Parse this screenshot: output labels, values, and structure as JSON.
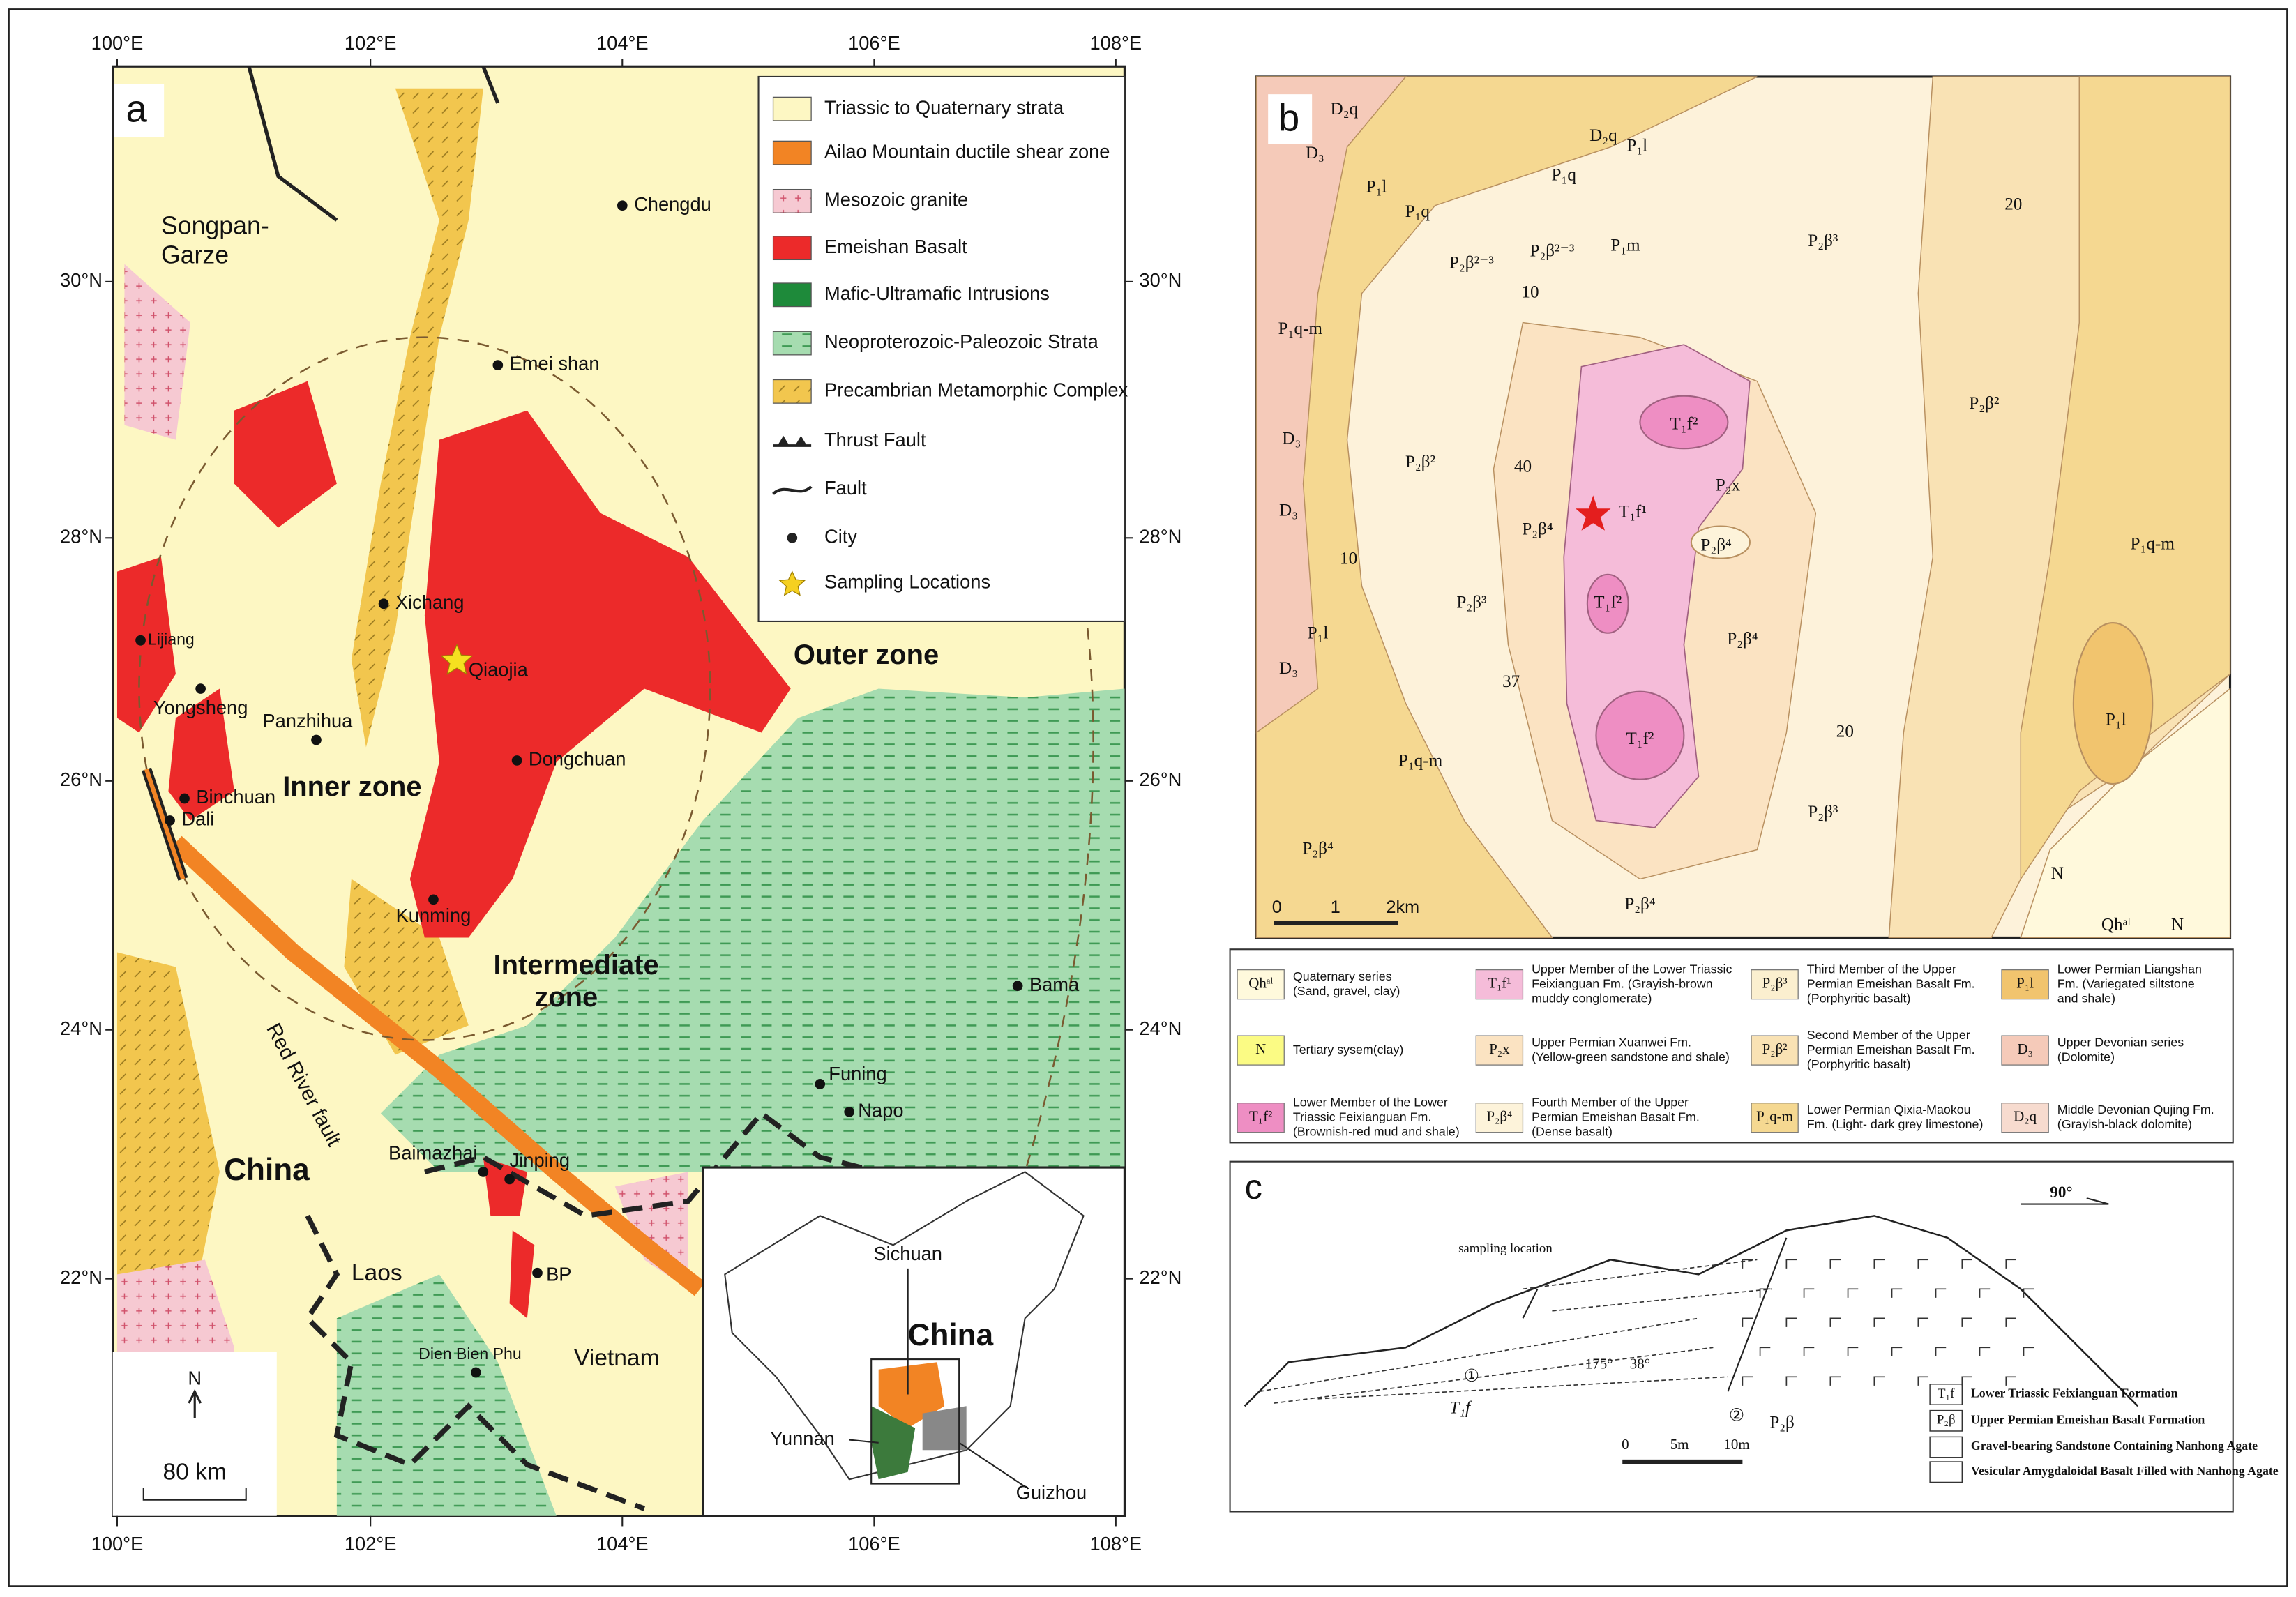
{
  "panel_a": {
    "label": "a",
    "lon_ticks": [
      "100°E",
      "102°E",
      "104°E",
      "106°E",
      "108°E"
    ],
    "lat_ticks": [
      "30°N",
      "28°N",
      "26°N",
      "24°N",
      "22°N"
    ],
    "legend": [
      {
        "text": "Triassic to Quaternary strata",
        "color": "#fdf7c3"
      },
      {
        "text": "Ailao Mountain ductile shear zone",
        "color": "#f28424"
      },
      {
        "text": "Mesozoic granite",
        "color": "#f6c9d2"
      },
      {
        "text": "Emeishan Basalt",
        "color": "#ec2a2a"
      },
      {
        "text": "Mafic-Ultramafic Intrusions",
        "color": "#1e8a3a"
      },
      {
        "text": "Neoproterozoic-Paleozoic Strata",
        "color": "#a6dcb0"
      },
      {
        "text": "Precambrian Metamorphic Complex",
        "color": "#f2c64e"
      },
      {
        "text": "Thrust Fault"
      },
      {
        "text": "Fault"
      },
      {
        "text": "City"
      },
      {
        "text": "Sampling Locations",
        "color": "#f5d020"
      }
    ],
    "regions": [
      "Songpan-",
      "Garze"
    ],
    "places": [
      "Chengdu",
      "Emei shan",
      "Xichang",
      "Qiaojia",
      "Lijiang",
      "Yongsheng",
      "Panzhihua",
      "Dongchuan",
      "Binchuan",
      "Dali",
      "Kunming",
      "Bama",
      "Funing",
      "Napo",
      "Baimazhai",
      "Jinping",
      "BP",
      "Dien Bien Phu"
    ],
    "zones": {
      "inner": "Inner zone",
      "intermediate": [
        "Intermediate",
        "zone"
      ],
      "outer": "Outer zone"
    },
    "fault_label": "Red River fault",
    "countries": [
      "China",
      "Laos",
      "Vietnam"
    ],
    "inset": {
      "country": "China",
      "provinces": [
        "Sichuan",
        "Yunnan",
        "Guizhou"
      ]
    },
    "north": "N",
    "scale": "80 km"
  },
  "panel_b": {
    "label": "b",
    "labels": [
      "D₂q",
      "D₂q",
      "P₁l",
      "D₃",
      "P₁l",
      "P₁q",
      "P₁q",
      "P₂β³",
      "P₂β²⁻³",
      "P₂β²⁻³",
      "P₁m",
      "10",
      "20",
      "P₁q-m",
      "D₃",
      "D₃",
      "T₁f²",
      "P₂β²",
      "40",
      "P₂x",
      "T₁f¹",
      "P₂β⁴",
      "P₂β²",
      "P₂β⁴",
      "P₁q-m",
      "10",
      "P₂β³",
      "T₁f²",
      "P₂β⁴",
      "P₁l",
      "D₃",
      "37",
      "20",
      "P₁l",
      "T₁f²",
      "P₁q-m",
      "P₂β³",
      "P₂β⁴",
      "N",
      "P₂β⁴",
      "Qhᵃˡ",
      "N"
    ],
    "scale": [
      "0",
      "1",
      "2km"
    ],
    "legend": [
      {
        "symbol": "Qhᵃˡ",
        "color": "#fff9dc",
        "lines": [
          "Quaternary series",
          "(Sand, gravel, clay)"
        ]
      },
      {
        "symbol": "T₁f¹",
        "color": "#f5bcd9",
        "lines": [
          "Upper Member of the Lower Triassic",
          "Feixianguan Fm. (Grayish-brown",
          "muddy conglomerate)"
        ]
      },
      {
        "symbol": "P₂β³",
        "color": "#fbefcf",
        "lines": [
          "Third Member of the Upper",
          "Permian Emeishan Basalt Fm.",
          "(Porphyritic basalt)"
        ]
      },
      {
        "symbol": "P₁l",
        "color": "#f1c46e",
        "lines": [
          "Lower Permian Liangshan",
          "Fm. (Variegated siltstone",
          "and shale)"
        ]
      },
      {
        "symbol": "N",
        "color": "#fbfb84",
        "lines": [
          "Tertiary sysem(clay)"
        ]
      },
      {
        "symbol": "P₂x",
        "color": "#fbe3c2",
        "lines": [
          "Upper Permian Xuanwei Fm.",
          "(Yellow-green sandstone and shale)"
        ]
      },
      {
        "symbol": "P₂β²",
        "color": "#f9e2b4",
        "lines": [
          "Second Member of the Upper",
          "Permian Emeishan Basalt Fm.",
          "(Porphyritic basalt)"
        ]
      },
      {
        "symbol": "D₃",
        "color": "#f5cab9",
        "lines": [
          "Upper Devonian series",
          "(Dolomite)"
        ]
      },
      {
        "symbol": "T₁f²",
        "color": "#ee8ec3",
        "lines": [
          "Lower Member of the Lower",
          "Triassic Feixianguan Fm.",
          "(Brownish-red mud and shale)"
        ]
      },
      {
        "symbol": "P₂β⁴",
        "color": "#fdf3da",
        "lines": [
          "Fourth Member of the Upper",
          "Permian Emeishan Basalt Fm.",
          "(Dense basalt)"
        ]
      },
      {
        "symbol": "P₁q-m",
        "color": "#f5d891",
        "lines": [
          "Lower Permian Qixia-Maokou",
          "Fm. (Light- dark grey limestone)"
        ]
      },
      {
        "symbol": "D₂q",
        "color": "#f7dbcf",
        "lines": [
          "Middle Devonian Qujing Fm.",
          "(Grayish-black dolomite)"
        ]
      }
    ]
  },
  "panel_c": {
    "label": "c",
    "direction": "90°",
    "sampling": "sampling location",
    "units": [
      "①",
      "②"
    ],
    "formations": [
      "T₁f",
      "P₂β"
    ],
    "attitude": [
      "175°",
      "38°"
    ],
    "scale": [
      "0",
      "5m",
      "10m"
    ],
    "legend": [
      {
        "symbol": "T₁f",
        "text": "Lower Triassic Feixianguan Formation"
      },
      {
        "symbol": "P₂β",
        "text": "Upper Permian Emeishan Basalt Formation"
      },
      {
        "text": "Gravel-bearing Sandstone Containing Nanhong Agate"
      },
      {
        "text": "Vesicular Amygdaloidal Basalt Filled with Nanhong Agate"
      }
    ]
  }
}
